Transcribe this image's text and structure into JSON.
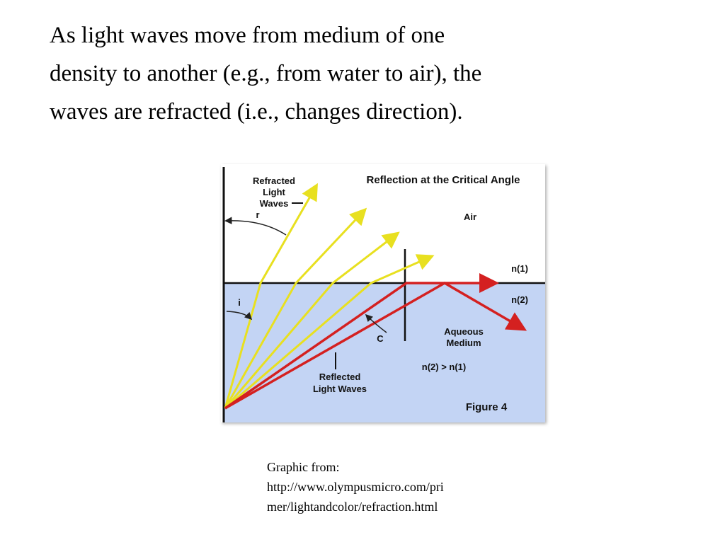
{
  "slide": {
    "body_lines": [
      "As light waves move from medium of one",
      "density to another (e.g., from water to air), the",
      "waves are refracted (i.e., changes direction)."
    ],
    "figure": {
      "title": "Reflection at the Critical Angle",
      "refracted_label": [
        "Refracted",
        "Light",
        "Waves"
      ],
      "angle_r": "r",
      "angle_i": "i",
      "angle_c": "C",
      "air": "Air",
      "n1": "n(1)",
      "n2": "n(2)",
      "medium": [
        "Aqueous",
        "Medium"
      ],
      "inequality": "n(2) > n(1)",
      "reflected_label": [
        "Reflected",
        "Light Waves"
      ],
      "figure_label": "Figure 4"
    },
    "caption_lines": [
      "Graphic from:",
      "http://www.olympusmicro.com/pri",
      "mer/lightandcolor/refraction.html"
    ]
  }
}
